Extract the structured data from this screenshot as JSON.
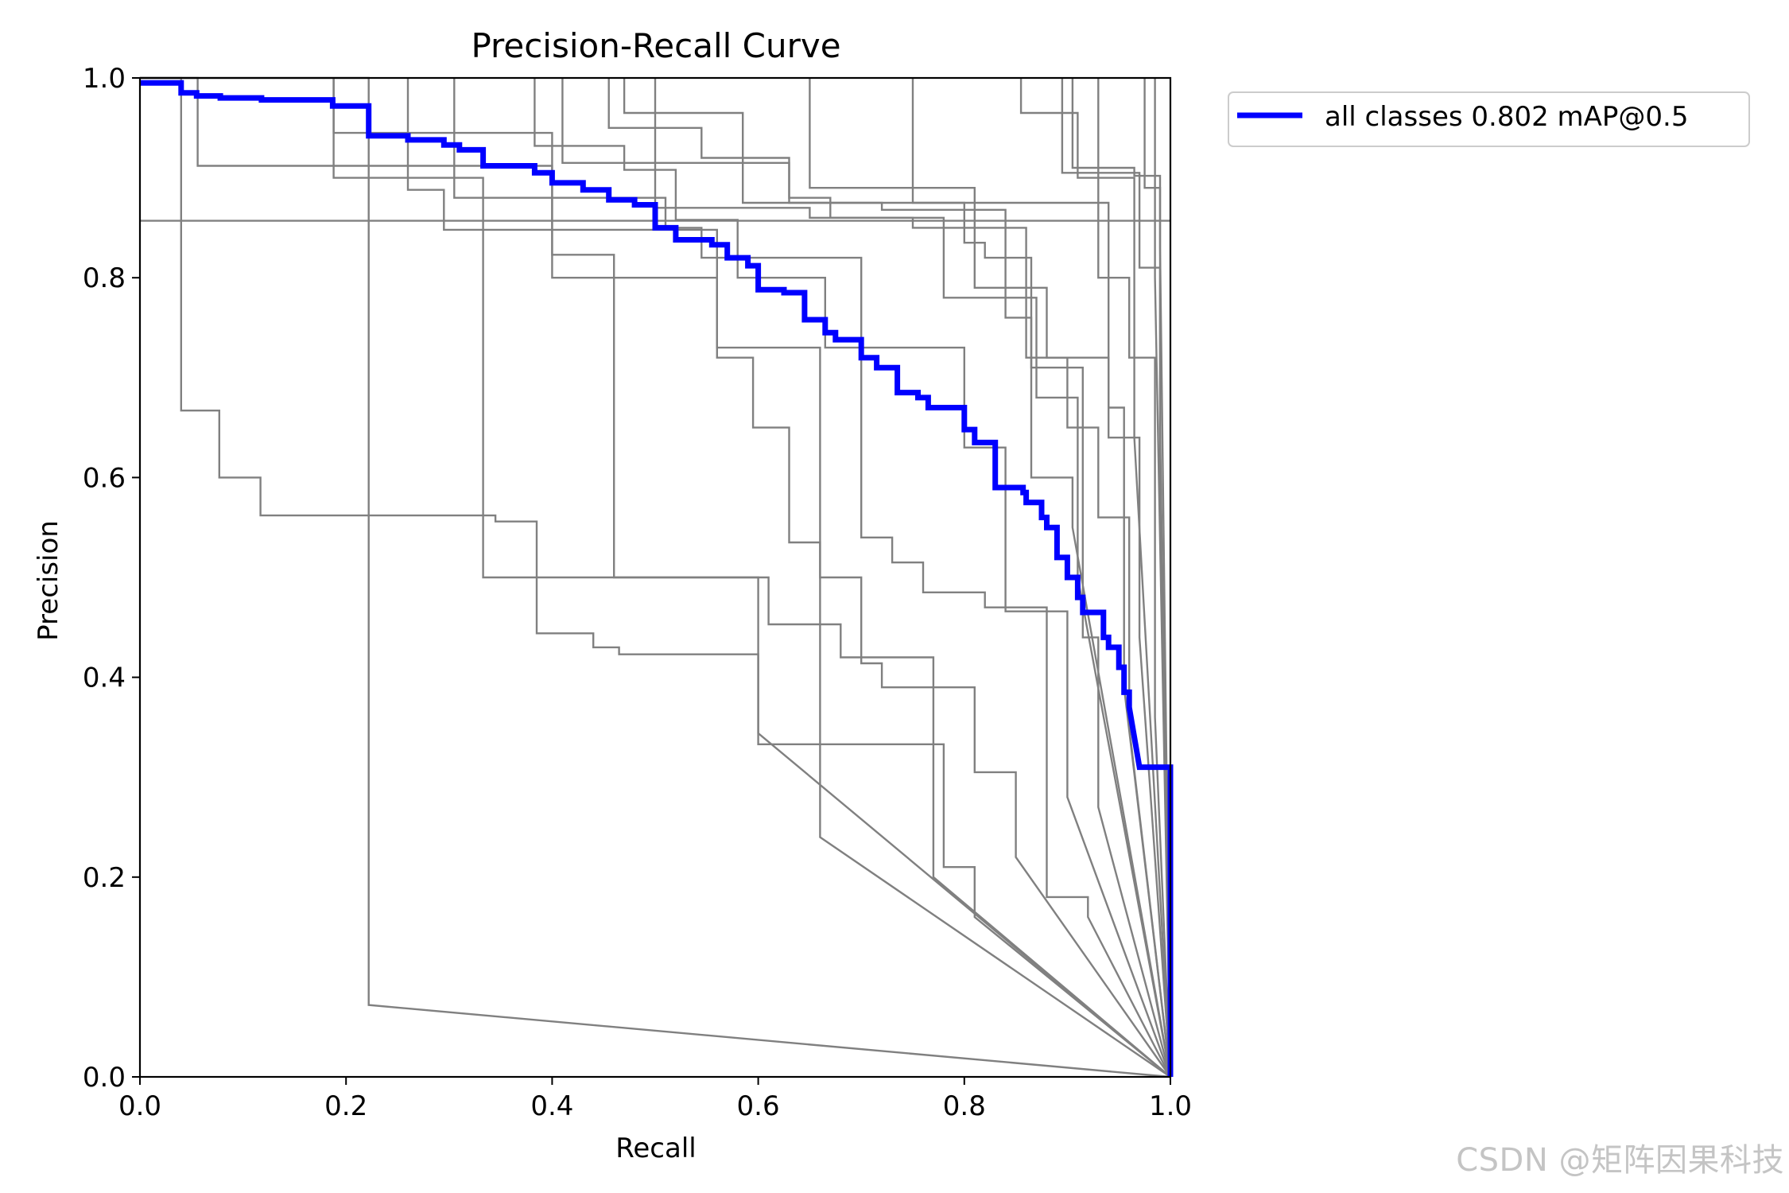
{
  "chart_data": {
    "type": "line",
    "title": "Precision-Recall Curve",
    "xlabel": "Recall",
    "ylabel": "Precision",
    "xlim": [
      0,
      1
    ],
    "ylim": [
      0,
      1
    ],
    "xticks": [
      "0.0",
      "0.2",
      "0.4",
      "0.6",
      "0.8",
      "1.0"
    ],
    "yticks": [
      "0.0",
      "0.2",
      "0.4",
      "0.6",
      "0.8",
      "1.0"
    ],
    "legend_position": "upper-right-outside",
    "grid": false,
    "series": [
      {
        "name": "all classes 0.802 mAP@0.5",
        "color": "#0000ff",
        "x": [
          0,
          0.04,
          0.04,
          0.055,
          0.055,
          0.078,
          0.078,
          0.118,
          0.118,
          0.187,
          0.187,
          0.222,
          0.222,
          0.26,
          0.26,
          0.295,
          0.295,
          0.31,
          0.31,
          0.333,
          0.333,
          0.383,
          0.383,
          0.4,
          0.4,
          0.43,
          0.43,
          0.455,
          0.455,
          0.48,
          0.48,
          0.5,
          0.5,
          0.52,
          0.52,
          0.555,
          0.555,
          0.57,
          0.57,
          0.59,
          0.59,
          0.6,
          0.6,
          0.625,
          0.625,
          0.645,
          0.645,
          0.665,
          0.665,
          0.675,
          0.675,
          0.7,
          0.7,
          0.715,
          0.715,
          0.735,
          0.735,
          0.755,
          0.755,
          0.765,
          0.765,
          0.8,
          0.8,
          0.81,
          0.81,
          0.83,
          0.83,
          0.857,
          0.857,
          0.86,
          0.86,
          0.875,
          0.875,
          0.88,
          0.88,
          0.89,
          0.89,
          0.9,
          0.9,
          0.91,
          0.91,
          0.915,
          0.915,
          0.935,
          0.935,
          0.94,
          0.94,
          0.95,
          0.95,
          0.955,
          0.955,
          0.96,
          0.96,
          0.97,
          1.0,
          1.0
        ],
        "y": [
          0.995,
          0.995,
          0.985,
          0.985,
          0.982,
          0.982,
          0.98,
          0.98,
          0.978,
          0.978,
          0.972,
          0.972,
          0.942,
          0.942,
          0.938,
          0.938,
          0.933,
          0.933,
          0.928,
          0.928,
          0.912,
          0.912,
          0.905,
          0.905,
          0.895,
          0.895,
          0.888,
          0.888,
          0.878,
          0.878,
          0.873,
          0.873,
          0.85,
          0.85,
          0.838,
          0.838,
          0.833,
          0.833,
          0.82,
          0.82,
          0.812,
          0.812,
          0.788,
          0.788,
          0.785,
          0.785,
          0.758,
          0.758,
          0.745,
          0.745,
          0.738,
          0.738,
          0.72,
          0.72,
          0.71,
          0.71,
          0.685,
          0.685,
          0.68,
          0.68,
          0.67,
          0.67,
          0.648,
          0.648,
          0.635,
          0.635,
          0.59,
          0.59,
          0.585,
          0.585,
          0.575,
          0.575,
          0.56,
          0.56,
          0.55,
          0.55,
          0.52,
          0.52,
          0.5,
          0.5,
          0.48,
          0.48,
          0.465,
          0.465,
          0.44,
          0.44,
          0.43,
          0.43,
          0.41,
          0.41,
          0.385,
          0.385,
          0.37,
          0.31,
          0.31,
          0.0
        ]
      }
    ],
    "class_series_color": "#808080",
    "class_series": [
      {
        "x": [
          0,
          0,
          0.222,
          0.222,
          1.0
        ],
        "y": [
          1.0,
          1.0,
          1.0,
          0.072,
          0.0
        ]
      },
      {
        "x": [
          0,
          0.04,
          0.04,
          0.077,
          0.077,
          0.117,
          0.117,
          0.345,
          0.345,
          0.385,
          0.385,
          0.44,
          0.44,
          0.465,
          0.465,
          0.6,
          0.6,
          1.0
        ],
        "y": [
          1.0,
          1.0,
          0.667,
          0.667,
          0.6,
          0.6,
          0.562,
          0.562,
          0.556,
          0.556,
          0.444,
          0.444,
          0.43,
          0.43,
          0.423,
          0.423,
          0.344,
          0.0
        ]
      },
      {
        "x": [
          0,
          0.056,
          0.056,
          0.4,
          0.4,
          0.56,
          0.56,
          0.595,
          0.595,
          0.63,
          0.63,
          0.66,
          0.66,
          1.0
        ],
        "y": [
          1.0,
          1.0,
          0.912,
          0.912,
          0.8,
          0.8,
          0.72,
          0.72,
          0.65,
          0.65,
          0.535,
          0.535,
          0.24,
          0.0
        ]
      },
      {
        "x": [
          0,
          1.0
        ],
        "y": [
          0.857,
          0.857
        ]
      },
      {
        "x": [
          0.188,
          0.188,
          0.333,
          0.333,
          0.6,
          0.6,
          0.78,
          0.78,
          0.81,
          0.81,
          1.0
        ],
        "y": [
          1.0,
          0.9,
          0.9,
          0.5,
          0.5,
          0.333,
          0.333,
          0.21,
          0.21,
          0.16,
          0.0
        ]
      },
      {
        "x": [
          0.188,
          0.188,
          0.4,
          0.4,
          0.46,
          0.46,
          0.61,
          0.61,
          0.68,
          0.68,
          0.77,
          0.77,
          0.81,
          0.81,
          0.85,
          0.85,
          1.0
        ],
        "y": [
          1.0,
          0.945,
          0.945,
          0.823,
          0.823,
          0.5,
          0.5,
          0.453,
          0.453,
          0.42,
          0.42,
          0.39,
          0.39,
          0.305,
          0.305,
          0.22,
          0.0
        ]
      },
      {
        "x": [
          0.26,
          0.26,
          0.295,
          0.295,
          0.56,
          0.56,
          0.66,
          0.66,
          0.7,
          0.7,
          0.72,
          0.72,
          0.77,
          0.77,
          1.0
        ],
        "y": [
          1.0,
          0.888,
          0.888,
          0.848,
          0.848,
          0.73,
          0.73,
          0.5,
          0.5,
          0.414,
          0.414,
          0.39,
          0.39,
          0.2,
          0.0
        ]
      },
      {
        "x": [
          0.305,
          0.305,
          0.51,
          0.51,
          0.545,
          0.545,
          0.7,
          0.7,
          0.73,
          0.73,
          0.76,
          0.76,
          0.82,
          0.82,
          0.88,
          0.88,
          0.92,
          0.92,
          1.0
        ],
        "y": [
          1.0,
          0.88,
          0.88,
          0.85,
          0.85,
          0.82,
          0.82,
          0.54,
          0.54,
          0.515,
          0.515,
          0.485,
          0.485,
          0.47,
          0.47,
          0.18,
          0.18,
          0.16,
          0.0
        ]
      },
      {
        "x": [
          0.383,
          0.383,
          0.47,
          0.47,
          0.52,
          0.52,
          0.58,
          0.58,
          0.665,
          0.665,
          0.8,
          0.8,
          0.84,
          0.84,
          0.9,
          0.9,
          1.0
        ],
        "y": [
          1.0,
          0.932,
          0.932,
          0.908,
          0.908,
          0.858,
          0.858,
          0.8,
          0.8,
          0.73,
          0.73,
          0.63,
          0.63,
          0.466,
          0.466,
          0.28,
          0.0
        ]
      },
      {
        "x": [
          0.41,
          0.41,
          0.63,
          0.63,
          0.72,
          0.72,
          0.84,
          0.84,
          0.865,
          0.865,
          0.905,
          0.905,
          1.0
        ],
        "y": [
          1.0,
          0.915,
          0.915,
          0.875,
          0.875,
          0.868,
          0.868,
          0.76,
          0.76,
          0.6,
          0.6,
          0.55,
          0.0
        ]
      },
      {
        "x": [
          0.455,
          0.455,
          0.545,
          0.545,
          0.63,
          0.63,
          0.67,
          0.67,
          0.78,
          0.78,
          0.87,
          0.87,
          0.91,
          0.91,
          1.0
        ],
        "y": [
          1.0,
          0.95,
          0.95,
          0.92,
          0.92,
          0.88,
          0.88,
          0.86,
          0.86,
          0.78,
          0.78,
          0.68,
          0.68,
          0.5,
          0.0
        ]
      },
      {
        "x": [
          0.47,
          0.47,
          0.585,
          0.585,
          0.8,
          0.8,
          0.82,
          0.82,
          0.865,
          0.865,
          0.915,
          0.915,
          0.93,
          0.93,
          1.0
        ],
        "y": [
          1.0,
          0.965,
          0.965,
          0.875,
          0.875,
          0.835,
          0.835,
          0.82,
          0.82,
          0.71,
          0.71,
          0.44,
          0.44,
          0.27,
          0.0
        ]
      },
      {
        "x": [
          0.5,
          0.5,
          0.65,
          0.65,
          0.75,
          0.75,
          0.86,
          0.86,
          0.94,
          0.94,
          0.955,
          0.955,
          1.0
        ],
        "y": [
          1.0,
          0.87,
          0.87,
          0.86,
          0.86,
          0.85,
          0.85,
          0.72,
          0.72,
          0.67,
          0.67,
          0.39,
          0.0
        ]
      },
      {
        "x": [
          0.65,
          0.65,
          0.81,
          0.81,
          0.88,
          0.88,
          0.9,
          0.9,
          0.93,
          0.93,
          0.96,
          0.96,
          1.0
        ],
        "y": [
          1.0,
          0.89,
          0.89,
          0.79,
          0.79,
          0.72,
          0.72,
          0.65,
          0.65,
          0.56,
          0.56,
          0.35,
          0.0
        ]
      },
      {
        "x": [
          0.75,
          0.75,
          0.94,
          0.94,
          0.97,
          0.97,
          1.0
        ],
        "y": [
          1.0,
          0.875,
          0.875,
          0.64,
          0.64,
          0.44,
          0.0
        ]
      },
      {
        "x": [
          0.855,
          0.855,
          0.91,
          0.91,
          0.965,
          0.965,
          1.0
        ],
        "y": [
          1.0,
          0.965,
          0.965,
          0.9,
          0.9,
          0.64,
          0.0
        ]
      },
      {
        "x": [
          0.895,
          0.895,
          0.93,
          0.93,
          0.96,
          0.96,
          0.985,
          0.985,
          1.0
        ],
        "y": [
          1.0,
          0.905,
          0.905,
          0.8,
          0.8,
          0.72,
          0.72,
          0.36,
          0.0
        ]
      },
      {
        "x": [
          0.905,
          0.905,
          0.965,
          0.965,
          0.99,
          0.99,
          1.0
        ],
        "y": [
          1.0,
          0.91,
          0.91,
          0.902,
          0.902,
          0.83,
          0.0
        ]
      },
      {
        "x": [
          0.93,
          0.93,
          0.97,
          0.97,
          0.99,
          0.99,
          1.0
        ],
        "y": [
          1.0,
          0.905,
          0.905,
          0.81,
          0.81,
          0.65,
          0.0
        ]
      },
      {
        "x": [
          0.975,
          0.975,
          0.99,
          0.99,
          1.0
        ],
        "y": [
          1.0,
          0.89,
          0.89,
          0.62,
          0.0
        ]
      },
      {
        "x": [
          0.985,
          0.985,
          1.0
        ],
        "y": [
          1.0,
          0.8,
          0.0
        ]
      }
    ]
  },
  "watermark": "CSDN @矩阵因果科技"
}
